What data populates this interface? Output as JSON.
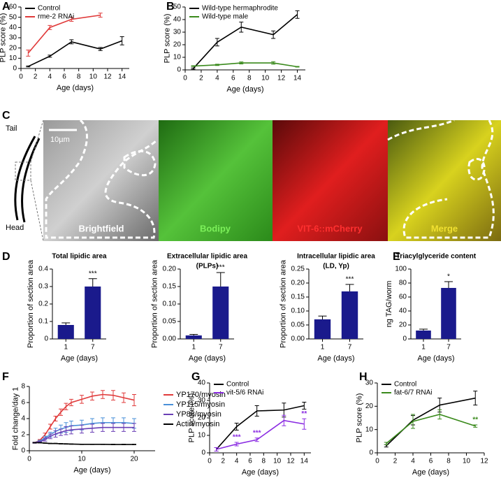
{
  "chart_data": [
    {
      "type": "line",
      "panel_label": "A",
      "x": [
        1,
        4,
        7,
        11,
        14
      ],
      "xlim": [
        0,
        15
      ],
      "xticks": [
        0,
        2,
        4,
        6,
        8,
        10,
        12,
        14
      ],
      "ylim": [
        0,
        60
      ],
      "yticks": [
        0,
        10,
        20,
        30,
        40,
        50,
        60
      ],
      "y_label": "PLP score (%)",
      "x_label": "Age (days)",
      "legend": "upper left",
      "series": [
        {
          "name": "Control",
          "color": "#000000",
          "values": [
            2,
            12,
            26,
            19,
            27
          ],
          "errors": [
            0.5,
            1,
            2,
            1.5,
            4
          ]
        },
        {
          "name": "rme-2 RNAi",
          "color": "#e03a3a",
          "values": [
            15,
            40,
            48,
            52,
            null
          ],
          "errors": [
            3,
            2,
            2,
            2,
            null
          ]
        }
      ]
    },
    {
      "type": "line",
      "panel_label": "B",
      "x": [
        1,
        4,
        7,
        11,
        14
      ],
      "xlim": [
        0,
        15
      ],
      "xticks": [
        0,
        2,
        4,
        6,
        8,
        10,
        12,
        14
      ],
      "ylim": [
        0,
        50
      ],
      "yticks": [
        0,
        10,
        20,
        30,
        40,
        50
      ],
      "y_label": "PLP score (%)",
      "x_label": "Age (days)",
      "legend": "upper left",
      "series": [
        {
          "name": "Wild-type hermaphrodite",
          "color": "#000000",
          "values": [
            1,
            22,
            34,
            28,
            44
          ],
          "errors": [
            0.5,
            3,
            4,
            3,
            3
          ]
        },
        {
          "name": "Wild-type male",
          "color": "#3a8a1c",
          "values": [
            3,
            4,
            5.5,
            5.5,
            2.5
          ],
          "errors": [
            0.3,
            0.5,
            0.8,
            1,
            0.3
          ]
        }
      ]
    },
    {
      "type": "bar",
      "panel_label": "D",
      "title": "Total lipidic area",
      "categories": [
        "1",
        "7"
      ],
      "values": [
        0.08,
        0.3
      ],
      "errors": [
        0.012,
        0.045
      ],
      "significance": [
        null,
        "***"
      ],
      "color": "#1a1a8c",
      "ylim": [
        0,
        0.4
      ],
      "yticks": [
        0,
        0.1,
        0.2,
        0.3,
        0.4
      ],
      "y_label": "Proportion of section area",
      "x_label": "Age (days)"
    },
    {
      "type": "bar",
      "title": "Extracellular lipidic area",
      "subtitle": "(PLPs)",
      "categories": [
        "1",
        "7"
      ],
      "values": [
        0.01,
        0.15
      ],
      "errors": [
        0.003,
        0.04
      ],
      "significance": [
        null,
        "***"
      ],
      "color": "#1a1a8c",
      "ylim": [
        0,
        0.2
      ],
      "yticks": [
        {
          "value": 0,
          "label": "0.00"
        },
        {
          "value": 0.05,
          "label": "0.05"
        },
        {
          "value": 0.1,
          "label": "0.10"
        },
        0.15,
        {
          "value": 0.2,
          "label": "0.20"
        }
      ],
      "y_label": "Proportion of section area",
      "x_label": "Age (days)"
    },
    {
      "type": "bar",
      "title": "Intracellular lipidic area",
      "subtitle": "(LD, Yp)",
      "categories": [
        "1",
        "7"
      ],
      "values": [
        0.07,
        0.17
      ],
      "errors": [
        0.012,
        0.025
      ],
      "significance": [
        null,
        "***"
      ],
      "color": "#1a1a8c",
      "ylim": [
        0,
        0.25
      ],
      "yticks": [
        {
          "value": 0,
          "label": "0.00"
        },
        0.05,
        {
          "value": 0.1,
          "label": "0.10"
        },
        0.15,
        {
          "value": 0.2,
          "label": "0.20"
        },
        0.25
      ],
      "y_label": "Proportion of section area",
      "x_label": "Age (days)"
    },
    {
      "type": "bar",
      "panel_label": "E",
      "title": "Triacylglyceride content",
      "categories": [
        "1",
        "7"
      ],
      "values": [
        12,
        73
      ],
      "errors": [
        2,
        9
      ],
      "significance": [
        null,
        "*"
      ],
      "color": "#1a1a8c",
      "ylim": [
        0,
        100
      ],
      "yticks": [
        0,
        20,
        40,
        60,
        80,
        100
      ],
      "y_label": "ng TAG/worm",
      "x_label": "Age (days)"
    },
    {
      "type": "line",
      "panel_label": "F",
      "x": [
        1,
        2,
        3,
        4,
        5,
        6,
        7,
        8,
        10,
        12,
        14,
        16,
        18,
        20
      ],
      "xlim": [
        0,
        24
      ],
      "xticks": [
        0,
        10,
        20
      ],
      "ylim": [
        0,
        8
      ],
      "yticks": [
        0,
        2,
        4,
        6,
        8
      ],
      "y_label": "Fold change/day 1",
      "x_label": "Age (days)",
      "legend": "right",
      "series": [
        {
          "name": "YP170/myosin",
          "color": "#e03a3a",
          "values": [
            1,
            1.3,
            2,
            3,
            4,
            4.8,
            5.5,
            6,
            6.4,
            6.8,
            7,
            6.9,
            6.6,
            6.3
          ],
          "errors": [
            0.05,
            0.1,
            0.2,
            0.3,
            0.3,
            0.4,
            0.4,
            0.4,
            0.5,
            0.5,
            0.5,
            0.6,
            0.6,
            0.7
          ]
        },
        {
          "name": "YP115/myosin",
          "color": "#4a90d9",
          "values": [
            1,
            1.2,
            1.6,
            2,
            2.4,
            2.7,
            2.9,
            3.1,
            3.2,
            3.4,
            3.5,
            3.5,
            3.5,
            3.4
          ],
          "errors": [
            0.05,
            0.1,
            0.2,
            0.3,
            0.4,
            0.5,
            0.6,
            0.6,
            0.6,
            0.6,
            0.6,
            0.6,
            0.6,
            0.6
          ]
        },
        {
          "name": "YP88/myosin",
          "color": "#6a3fb5",
          "values": [
            1,
            1.1,
            1.4,
            1.8,
            2.1,
            2.3,
            2.5,
            2.6,
            2.7,
            2.8,
            2.9,
            2.9,
            2.9,
            2.9
          ],
          "errors": [
            0.05,
            0.1,
            0.2,
            0.3,
            0.4,
            0.4,
            0.5,
            0.5,
            0.5,
            0.5,
            0.5,
            0.5,
            0.5,
            0.5
          ]
        },
        {
          "name": "Actin/myosin",
          "color": "#000000",
          "values": [
            1,
            1,
            0.95,
            0.9,
            0.9,
            0.87,
            0.85,
            0.83,
            0.8,
            0.8,
            0.8,
            0.78,
            0.78,
            0.78
          ],
          "errors": [
            0.03,
            0.03,
            0.03,
            0.03,
            0.03,
            0.03,
            0.03,
            0.03,
            0.03,
            0.03,
            0.03,
            0.03,
            0.03,
            0.03
          ]
        }
      ]
    },
    {
      "type": "line",
      "panel_label": "G",
      "x": [
        1,
        4,
        7,
        11,
        14
      ],
      "xlim": [
        0,
        15
      ],
      "xticks": [
        0,
        2,
        4,
        6,
        8,
        10,
        12,
        14
      ],
      "ylim": [
        0,
        40
      ],
      "yticks": [
        0,
        10,
        20,
        30,
        40
      ],
      "y_label": "PLP score (%)",
      "x_label": "Age (days)",
      "legend": "upper left",
      "series": [
        {
          "name": "Control",
          "color": "#000000",
          "values": [
            2,
            15,
            24,
            24.5,
            27
          ],
          "errors": [
            1,
            2,
            3,
            4,
            2
          ]
        },
        {
          "name": "vit-5/6 RNAi",
          "color": "#8a2be2",
          "values": [
            2,
            5,
            7.5,
            18.5,
            16.5
          ],
          "errors": [
            1,
            1,
            1,
            3,
            3
          ],
          "significance": [
            null,
            "***",
            "***",
            null,
            "**"
          ]
        }
      ]
    },
    {
      "type": "line",
      "panel_label": "H",
      "x": [
        1,
        4,
        7,
        11
      ],
      "xlim": [
        0,
        12
      ],
      "xticks": [
        0,
        2,
        4,
        6,
        8,
        10,
        12
      ],
      "ylim": [
        0,
        30
      ],
      "yticks": [
        0,
        10,
        20,
        30
      ],
      "y_label": "PLP score (%)",
      "x_label": "Age (days)",
      "legend": "upper left",
      "series": [
        {
          "name": "Control",
          "color": "#000000",
          "values": [
            3,
            14,
            20.5,
            23.5
          ],
          "errors": [
            0.5,
            2,
            3,
            3
          ]
        },
        {
          "name": "fat-6/7 RNAi",
          "color": "#3a8a1c",
          "values": [
            4,
            13.5,
            16.5,
            11.5
          ],
          "errors": [
            0.5,
            3,
            2,
            0.5
          ],
          "significance": [
            null,
            null,
            null,
            "**"
          ]
        }
      ]
    }
  ],
  "panel_c": {
    "panel_label": "C",
    "tail": "Tail",
    "head": "Head",
    "scale_bar": "10µm",
    "labels": [
      "Brightfield",
      "Bodipy",
      "VIT-6::mCherry",
      "Merge"
    ]
  }
}
